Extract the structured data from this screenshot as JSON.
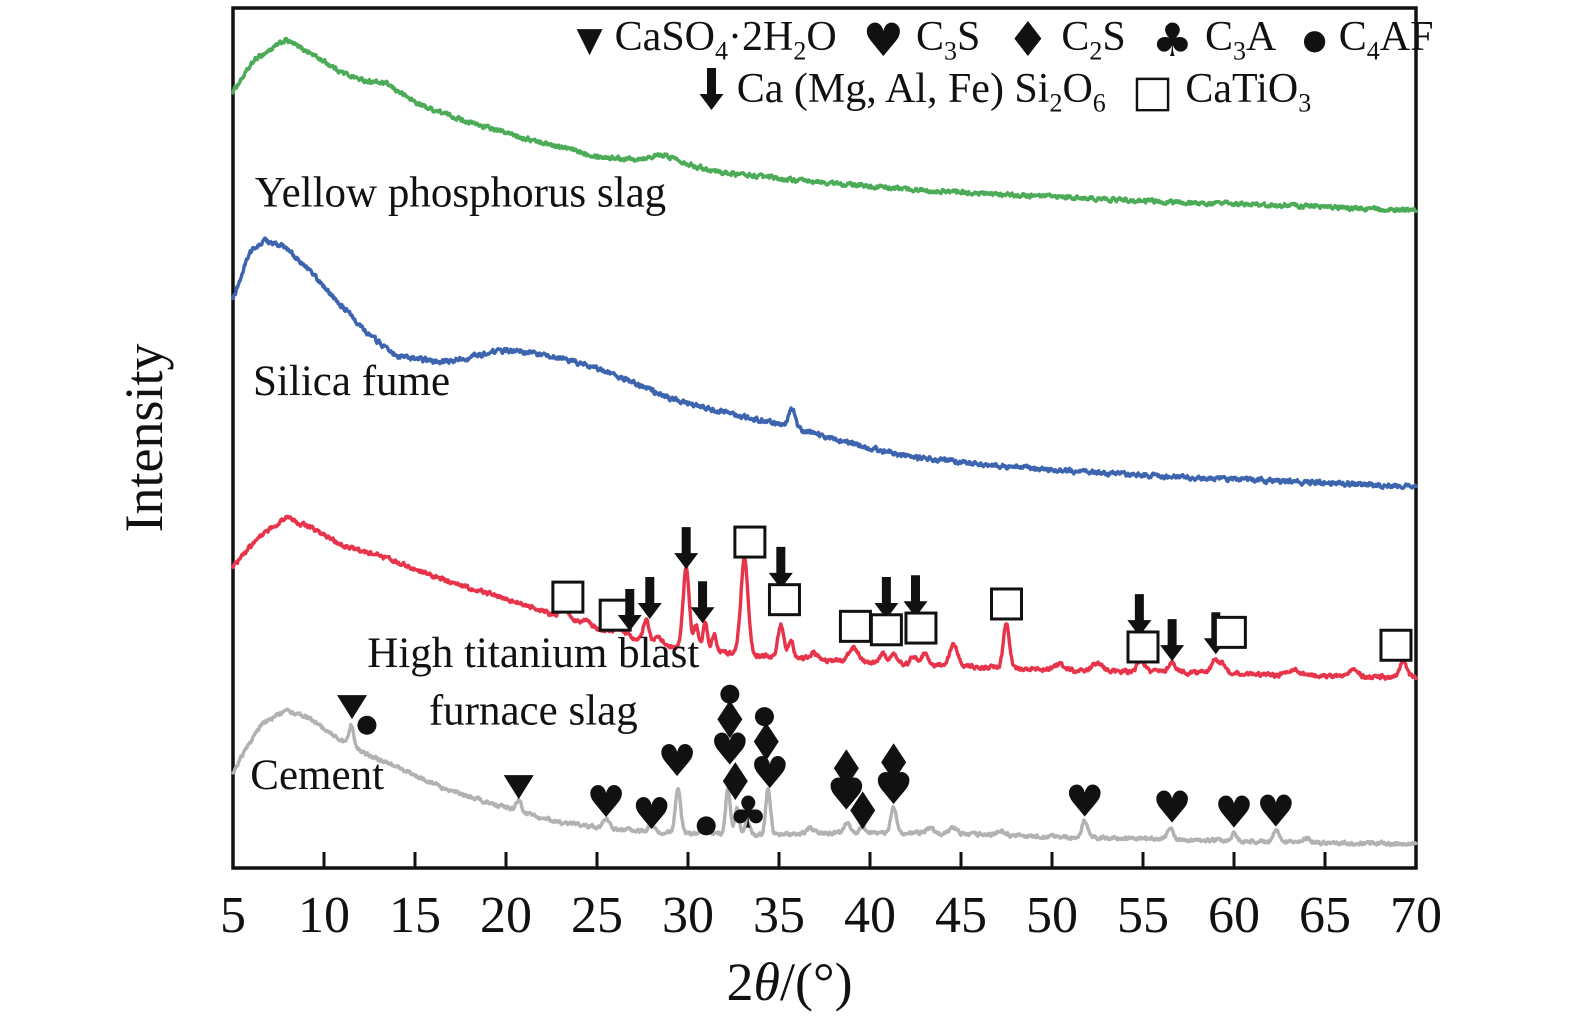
{
  "chart_data": {
    "type": "line",
    "title": "",
    "xlabel": "2θ/(°)",
    "ylabel": "Intensity",
    "xlim": [
      5,
      70
    ],
    "x_ticks": [
      5,
      10,
      15,
      20,
      25,
      30,
      35,
      40,
      45,
      50,
      55,
      60,
      65,
      70
    ],
    "y_ticks": [],
    "grid": false,
    "frame_color": "#111111",
    "legend_position": "top-inside",
    "legend": {
      "rows": [
        [
          {
            "symbol": "triangle-down",
            "label": "CaSO{4}·2H{2}O"
          },
          {
            "symbol": "heart",
            "label": "C{3}S"
          },
          {
            "symbol": "diamond",
            "label": "C{2}S"
          },
          {
            "symbol": "club",
            "label": "C{3}A"
          },
          {
            "symbol": "dot",
            "label": "C{4}AF"
          }
        ],
        [
          {
            "symbol": "arrow-down",
            "label": "Ca (Mg, Al, Fe) Si{2}O{6}"
          },
          {
            "symbol": "square",
            "label": "CaTiO{3}"
          }
        ]
      ]
    },
    "series": [
      {
        "name": "Yellow phosphorus slag",
        "color": "#4bab57",
        "label": {
          "lines": [
            "Yellow phosphorus slag"
          ],
          "x": 6.2,
          "v": 0.769,
          "anchor": "start"
        },
        "noise": 0.004,
        "backbone": [
          [
            5,
            0.903
          ],
          [
            6.2,
            0.94
          ],
          [
            7.9,
            0.963
          ],
          [
            9.3,
            0.947
          ],
          [
            11,
            0.925
          ],
          [
            12.1,
            0.916
          ],
          [
            13.4,
            0.912
          ],
          [
            15.3,
            0.887
          ],
          [
            18,
            0.867
          ],
          [
            21.3,
            0.847
          ],
          [
            25.2,
            0.827
          ],
          [
            28,
            0.822
          ],
          [
            29.5,
            0.82
          ],
          [
            31.8,
            0.809
          ],
          [
            36.2,
            0.799
          ],
          [
            41.6,
            0.79
          ],
          [
            47.1,
            0.783
          ],
          [
            52.6,
            0.778
          ],
          [
            58.1,
            0.773
          ],
          [
            63.6,
            0.77
          ],
          [
            70,
            0.764
          ]
        ],
        "peaks": [
          {
            "x": 28.6,
            "h": 0.007,
            "w": 0.8
          }
        ],
        "markers": []
      },
      {
        "name": "Silica fume",
        "color": "#3d64ae",
        "label": {
          "lines": [
            "Silica fume"
          ],
          "x": 6.1,
          "v": 0.55,
          "anchor": "start"
        },
        "noise": 0.0045,
        "backbone": [
          [
            5,
            0.66
          ],
          [
            5.9,
            0.716
          ],
          [
            6.8,
            0.73
          ],
          [
            7.9,
            0.721
          ],
          [
            9.2,
            0.695
          ],
          [
            10.9,
            0.655
          ],
          [
            12.5,
            0.62
          ],
          [
            14,
            0.595
          ],
          [
            15.3,
            0.591
          ],
          [
            16.6,
            0.588
          ],
          [
            18,
            0.594
          ],
          [
            19.7,
            0.602
          ],
          [
            21.3,
            0.6
          ],
          [
            23,
            0.593
          ],
          [
            25.2,
            0.58
          ],
          [
            27.9,
            0.556
          ],
          [
            29.6,
            0.542
          ],
          [
            31.8,
            0.53
          ],
          [
            34,
            0.521
          ],
          [
            37.3,
            0.503
          ],
          [
            40,
            0.488
          ],
          [
            42.7,
            0.477
          ],
          [
            46,
            0.47
          ],
          [
            49.9,
            0.463
          ],
          [
            55.4,
            0.456
          ],
          [
            59.2,
            0.453
          ],
          [
            63.6,
            0.449
          ],
          [
            70,
            0.443
          ]
        ],
        "peaks": [
          {
            "x": 35.7,
            "h": 0.024,
            "w": 0.18
          }
        ],
        "markers": []
      },
      {
        "name": "High titanium blast furnace slag",
        "color": "#e8344a",
        "label": {
          "lines": [
            "High titanium blast",
            "furnace slag"
          ],
          "x": 21.5,
          "v": 0.234,
          "anchor": "middle",
          "line_gap_v": 0.067
        },
        "noise": 0.004,
        "backbone": [
          [
            5,
            0.35
          ],
          [
            6.5,
            0.387
          ],
          [
            7.9,
            0.407
          ],
          [
            9.2,
            0.397
          ],
          [
            10.9,
            0.376
          ],
          [
            12,
            0.369
          ],
          [
            13.1,
            0.363
          ],
          [
            15.3,
            0.345
          ],
          [
            17.5,
            0.329
          ],
          [
            19.7,
            0.315
          ],
          [
            21.9,
            0.3
          ],
          [
            24.1,
            0.283
          ],
          [
            26.3,
            0.272
          ],
          [
            28.5,
            0.259
          ],
          [
            30.7,
            0.253
          ],
          [
            32.9,
            0.248
          ],
          [
            35.6,
            0.244
          ],
          [
            38.9,
            0.24
          ],
          [
            42.7,
            0.236
          ],
          [
            47.1,
            0.233
          ],
          [
            52.6,
            0.229
          ],
          [
            58.1,
            0.227
          ],
          [
            63.6,
            0.224
          ],
          [
            70,
            0.222
          ]
        ],
        "peaks": [
          {
            "x": 23.2,
            "h": 0.022,
            "w": 0.18
          },
          {
            "x": 24.3,
            "h": 0.006,
            "w": 0.3
          },
          {
            "x": 26.2,
            "h": 0.005,
            "w": 0.3
          },
          {
            "x": 27.7,
            "h": 0.025,
            "w": 0.16
          },
          {
            "x": 28.4,
            "h": 0.008,
            "w": 0.2
          },
          {
            "x": 29.9,
            "h": 0.094,
            "w": 0.17
          },
          {
            "x": 30.45,
            "h": 0.028,
            "w": 0.13
          },
          {
            "x": 30.95,
            "h": 0.033,
            "w": 0.13
          },
          {
            "x": 31.45,
            "h": 0.02,
            "w": 0.13
          },
          {
            "x": 33.1,
            "h": 0.112,
            "w": 0.2
          },
          {
            "x": 35.1,
            "h": 0.038,
            "w": 0.16
          },
          {
            "x": 35.65,
            "h": 0.022,
            "w": 0.14
          },
          {
            "x": 36.9,
            "h": 0.007,
            "w": 0.25
          },
          {
            "x": 39.1,
            "h": 0.016,
            "w": 0.25
          },
          {
            "x": 40.7,
            "h": 0.011,
            "w": 0.18
          },
          {
            "x": 41.3,
            "h": 0.013,
            "w": 0.18
          },
          {
            "x": 42.4,
            "h": 0.01,
            "w": 0.18
          },
          {
            "x": 43.0,
            "h": 0.013,
            "w": 0.18
          },
          {
            "x": 44.6,
            "h": 0.026,
            "w": 0.22
          },
          {
            "x": 47.5,
            "h": 0.053,
            "w": 0.16
          },
          {
            "x": 50.4,
            "h": 0.006,
            "w": 0.3
          },
          {
            "x": 52.5,
            "h": 0.008,
            "w": 0.3
          },
          {
            "x": 54.9,
            "h": 0.015,
            "w": 0.2
          },
          {
            "x": 56.6,
            "h": 0.012,
            "w": 0.2
          },
          {
            "x": 58.95,
            "h": 0.017,
            "w": 0.18
          },
          {
            "x": 59.4,
            "h": 0.012,
            "w": 0.15
          },
          {
            "x": 63.3,
            "h": 0.007,
            "w": 0.3
          },
          {
            "x": 66.5,
            "h": 0.006,
            "w": 0.3
          },
          {
            "x": 69.3,
            "h": 0.019,
            "w": 0.18
          }
        ],
        "markers": [
          {
            "symbol": "square",
            "x": 23.4,
            "v": 0.315
          },
          {
            "symbol": "square",
            "x": 26.0,
            "v": 0.294
          },
          {
            "symbol": "arrow-down",
            "x": 26.8,
            "v": 0.3
          },
          {
            "symbol": "arrow-down",
            "x": 27.9,
            "v": 0.314
          },
          {
            "symbol": "arrow-down",
            "x": 29.9,
            "v": 0.372
          },
          {
            "symbol": "arrow-down",
            "x": 30.8,
            "v": 0.309
          },
          {
            "symbol": "square",
            "x": 33.4,
            "v": 0.379
          },
          {
            "symbol": "arrow-down",
            "x": 35.1,
            "v": 0.349
          },
          {
            "symbol": "square",
            "x": 35.3,
            "v": 0.312
          },
          {
            "symbol": "square",
            "x": 39.2,
            "v": 0.281
          },
          {
            "symbol": "arrow-down",
            "x": 40.9,
            "v": 0.314
          },
          {
            "symbol": "square",
            "x": 40.9,
            "v": 0.277
          },
          {
            "symbol": "arrow-down",
            "x": 42.5,
            "v": 0.316
          },
          {
            "symbol": "square",
            "x": 42.8,
            "v": 0.279
          },
          {
            "symbol": "square",
            "x": 47.5,
            "v": 0.307
          },
          {
            "symbol": "arrow-down",
            "x": 54.8,
            "v": 0.294
          },
          {
            "symbol": "square",
            "x": 55.0,
            "v": 0.257
          },
          {
            "symbol": "arrow-down",
            "x": 56.6,
            "v": 0.265
          },
          {
            "symbol": "arrow-down",
            "x": 59.0,
            "v": 0.273
          },
          {
            "symbol": "square",
            "x": 59.8,
            "v": 0.274
          },
          {
            "symbol": "square",
            "x": 68.9,
            "v": 0.259
          }
        ]
      },
      {
        "name": "Cement",
        "color": "#b2b2b2",
        "label": {
          "lines": [
            "Cement"
          ],
          "x": 5.95,
          "v": 0.092,
          "anchor": "start"
        },
        "noise": 0.0035,
        "backbone": [
          [
            5,
            0.112
          ],
          [
            6.5,
            0.166
          ],
          [
            7.9,
            0.184
          ],
          [
            9.2,
            0.174
          ],
          [
            10.9,
            0.149
          ],
          [
            12.5,
            0.131
          ],
          [
            14.2,
            0.116
          ],
          [
            16.4,
            0.094
          ],
          [
            18.6,
            0.079
          ],
          [
            20.8,
            0.065
          ],
          [
            23,
            0.053
          ],
          [
            25.2,
            0.047
          ],
          [
            27.9,
            0.042
          ],
          [
            30.7,
            0.04
          ],
          [
            33.4,
            0.039
          ],
          [
            36.2,
            0.04
          ],
          [
            40,
            0.041
          ],
          [
            44.4,
            0.04
          ],
          [
            49.9,
            0.036
          ],
          [
            55.4,
            0.034
          ],
          [
            60.9,
            0.031
          ],
          [
            66,
            0.029
          ],
          [
            70,
            0.028
          ]
        ],
        "peaks": [
          {
            "x": 11.5,
            "h": 0.024,
            "w": 0.12
          },
          {
            "x": 20.7,
            "h": 0.013,
            "w": 0.15
          },
          {
            "x": 25.5,
            "h": 0.012,
            "w": 0.15
          },
          {
            "x": 28.0,
            "h": 0.009,
            "w": 0.15
          },
          {
            "x": 29.45,
            "h": 0.053,
            "w": 0.14
          },
          {
            "x": 31.0,
            "h": 0.006,
            "w": 0.15
          },
          {
            "x": 32.2,
            "h": 0.052,
            "w": 0.13
          },
          {
            "x": 32.7,
            "h": 0.03,
            "w": 0.12
          },
          {
            "x": 33.25,
            "h": 0.018,
            "w": 0.12
          },
          {
            "x": 34.4,
            "h": 0.051,
            "w": 0.13
          },
          {
            "x": 36.7,
            "h": 0.006,
            "w": 0.2
          },
          {
            "x": 38.75,
            "h": 0.012,
            "w": 0.15
          },
          {
            "x": 39.6,
            "h": 0.008,
            "w": 0.15
          },
          {
            "x": 41.3,
            "h": 0.029,
            "w": 0.16
          },
          {
            "x": 43.3,
            "h": 0.006,
            "w": 0.2
          },
          {
            "x": 44.6,
            "h": 0.007,
            "w": 0.2
          },
          {
            "x": 47.2,
            "h": 0.004,
            "w": 0.25
          },
          {
            "x": 51.8,
            "h": 0.019,
            "w": 0.16
          },
          {
            "x": 56.5,
            "h": 0.012,
            "w": 0.16
          },
          {
            "x": 60.0,
            "h": 0.009,
            "w": 0.15
          },
          {
            "x": 62.3,
            "h": 0.013,
            "w": 0.15
          },
          {
            "x": 64.0,
            "h": 0.004,
            "w": 0.2
          }
        ],
        "markers": [
          {
            "symbol": "triangle-down",
            "x": 11.54,
            "v": 0.187
          },
          {
            "symbol": "dot",
            "x": 12.36,
            "v": 0.166
          },
          {
            "symbol": "triangle-down",
            "x": 20.7,
            "v": 0.094
          },
          {
            "symbol": "heart",
            "x": 25.5,
            "v": 0.076
          },
          {
            "symbol": "heart",
            "x": 28.0,
            "v": 0.062
          },
          {
            "symbol": "heart",
            "x": 29.4,
            "v": 0.124
          },
          {
            "symbol": "dot",
            "x": 31.0,
            "v": 0.049
          },
          {
            "symbol": "dot",
            "x": 32.3,
            "v": 0.202
          },
          {
            "symbol": "diamond",
            "x": 32.3,
            "v": 0.173
          },
          {
            "symbol": "heart",
            "x": 32.3,
            "v": 0.137
          },
          {
            "symbol": "diamond",
            "x": 32.6,
            "v": 0.101
          },
          {
            "symbol": "club",
            "x": 33.3,
            "v": 0.064
          },
          {
            "symbol": "dot",
            "x": 34.2,
            "v": 0.176
          },
          {
            "symbol": "diamond",
            "x": 34.3,
            "v": 0.147
          },
          {
            "symbol": "heart",
            "x": 34.5,
            "v": 0.11
          },
          {
            "symbol": "diamond",
            "x": 38.7,
            "v": 0.116
          },
          {
            "symbol": "heart",
            "x": 38.7,
            "v": 0.085
          },
          {
            "symbol": "diamond",
            "x": 39.6,
            "v": 0.067
          },
          {
            "symbol": "diamond",
            "x": 41.3,
            "v": 0.123
          },
          {
            "symbol": "heart",
            "x": 41.3,
            "v": 0.091
          },
          {
            "symbol": "heart",
            "x": 51.8,
            "v": 0.077
          },
          {
            "symbol": "heart",
            "x": 56.6,
            "v": 0.07
          },
          {
            "symbol": "heart",
            "x": 60.0,
            "v": 0.064
          },
          {
            "symbol": "heart",
            "x": 62.3,
            "v": 0.065
          }
        ]
      }
    ]
  }
}
